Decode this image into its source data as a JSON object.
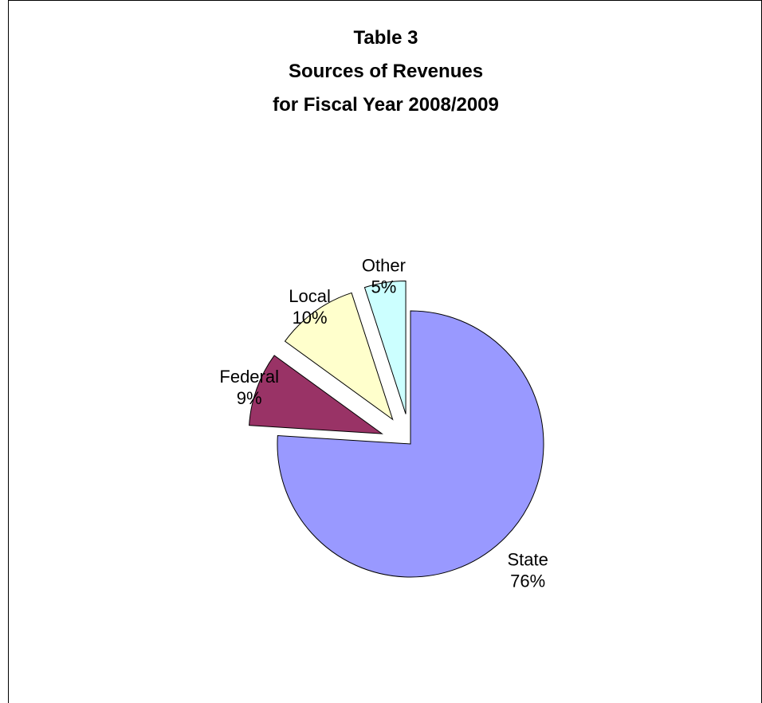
{
  "chart_data": {
    "type": "pie",
    "title": [
      "Table 3",
      "Sources of Revenues",
      "for Fiscal Year 2008/2009"
    ],
    "categories": [
      "State",
      "Federal",
      "Local",
      "Other"
    ],
    "values": [
      76,
      9,
      10,
      5
    ],
    "value_labels": [
      "76%",
      "9%",
      "10%",
      "5%"
    ],
    "colors": [
      "#9999FF",
      "#993366",
      "#FFFFCC",
      "#CCFFFF"
    ],
    "exploded": [
      "Federal",
      "Local",
      "Other"
    ],
    "start_angle": "12 o'clock",
    "direction": "clockwise",
    "legend": "none",
    "labels_position": "outside"
  }
}
